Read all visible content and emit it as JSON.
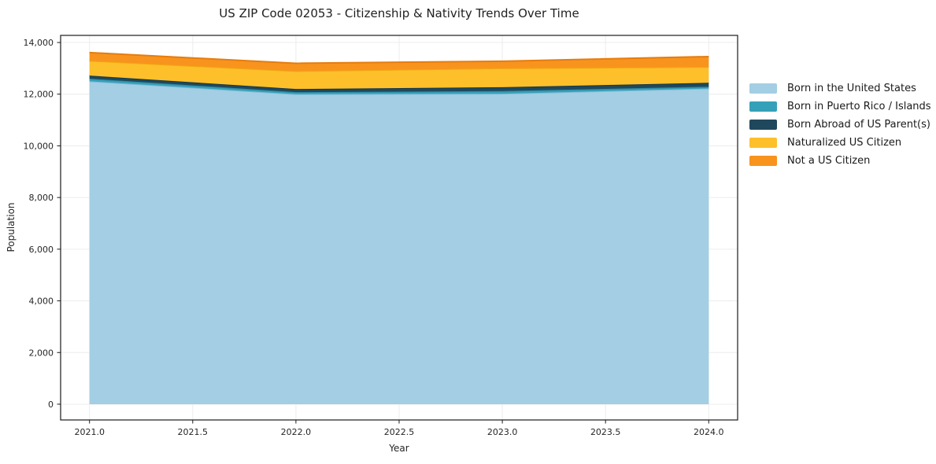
{
  "title": "US ZIP Code 02053 - Citizenship & Nativity Trends Over Time",
  "chart_data": {
    "type": "area",
    "stacked": true,
    "title": "US ZIP Code 02053 - Citizenship & Nativity Trends Over Time",
    "xlabel": "Year",
    "ylabel": "Population",
    "x": [
      2021,
      2022,
      2023,
      2024
    ],
    "series": [
      {
        "name": "Born in the United States",
        "values": [
          12500,
          12000,
          12020,
          12220
        ],
        "color": "#a3cee3",
        "edge": "#82b8d6"
      },
      {
        "name": "Born in Puerto Rico / Islands",
        "values": [
          100,
          80,
          100,
          70
        ],
        "color": "#35a1b9",
        "edge": "#2b8ba2"
      },
      {
        "name": "Born Abroad of US Parent(s)",
        "values": [
          120,
          120,
          150,
          150
        ],
        "color": "#20485c",
        "edge": "#173848"
      },
      {
        "name": "Naturalized US Citizen",
        "values": [
          570,
          690,
          730,
          610
        ],
        "color": "#fdc02b",
        "edge": "#f0a912"
      },
      {
        "name": "Not a US Citizen",
        "values": [
          320,
          305,
          275,
          405
        ],
        "color": "#f8941d",
        "edge": "#e67c0e"
      }
    ],
    "xlim": [
      2020.86,
      2024.14
    ],
    "ylim": [
      -610,
      14275
    ],
    "xticks": [
      2021.0,
      2021.5,
      2022.0,
      2022.5,
      2023.0,
      2023.5,
      2024.0
    ],
    "xtick_labels": [
      "2021.0",
      "2021.5",
      "2022.0",
      "2022.5",
      "2023.0",
      "2023.5",
      "2024.0"
    ],
    "yticks": [
      0,
      2000,
      4000,
      6000,
      8000,
      10000,
      12000,
      14000
    ],
    "ytick_labels": [
      "0",
      "2,000",
      "4,000",
      "6,000",
      "8,000",
      "10,000",
      "12,000",
      "14,000"
    ],
    "grid": true,
    "legend_position": "center-right-outside",
    "colors": {
      "grid": "#ececec",
      "spine": "#1a1a1a",
      "tick_text": "#262626",
      "background": "#ffffff"
    }
  }
}
